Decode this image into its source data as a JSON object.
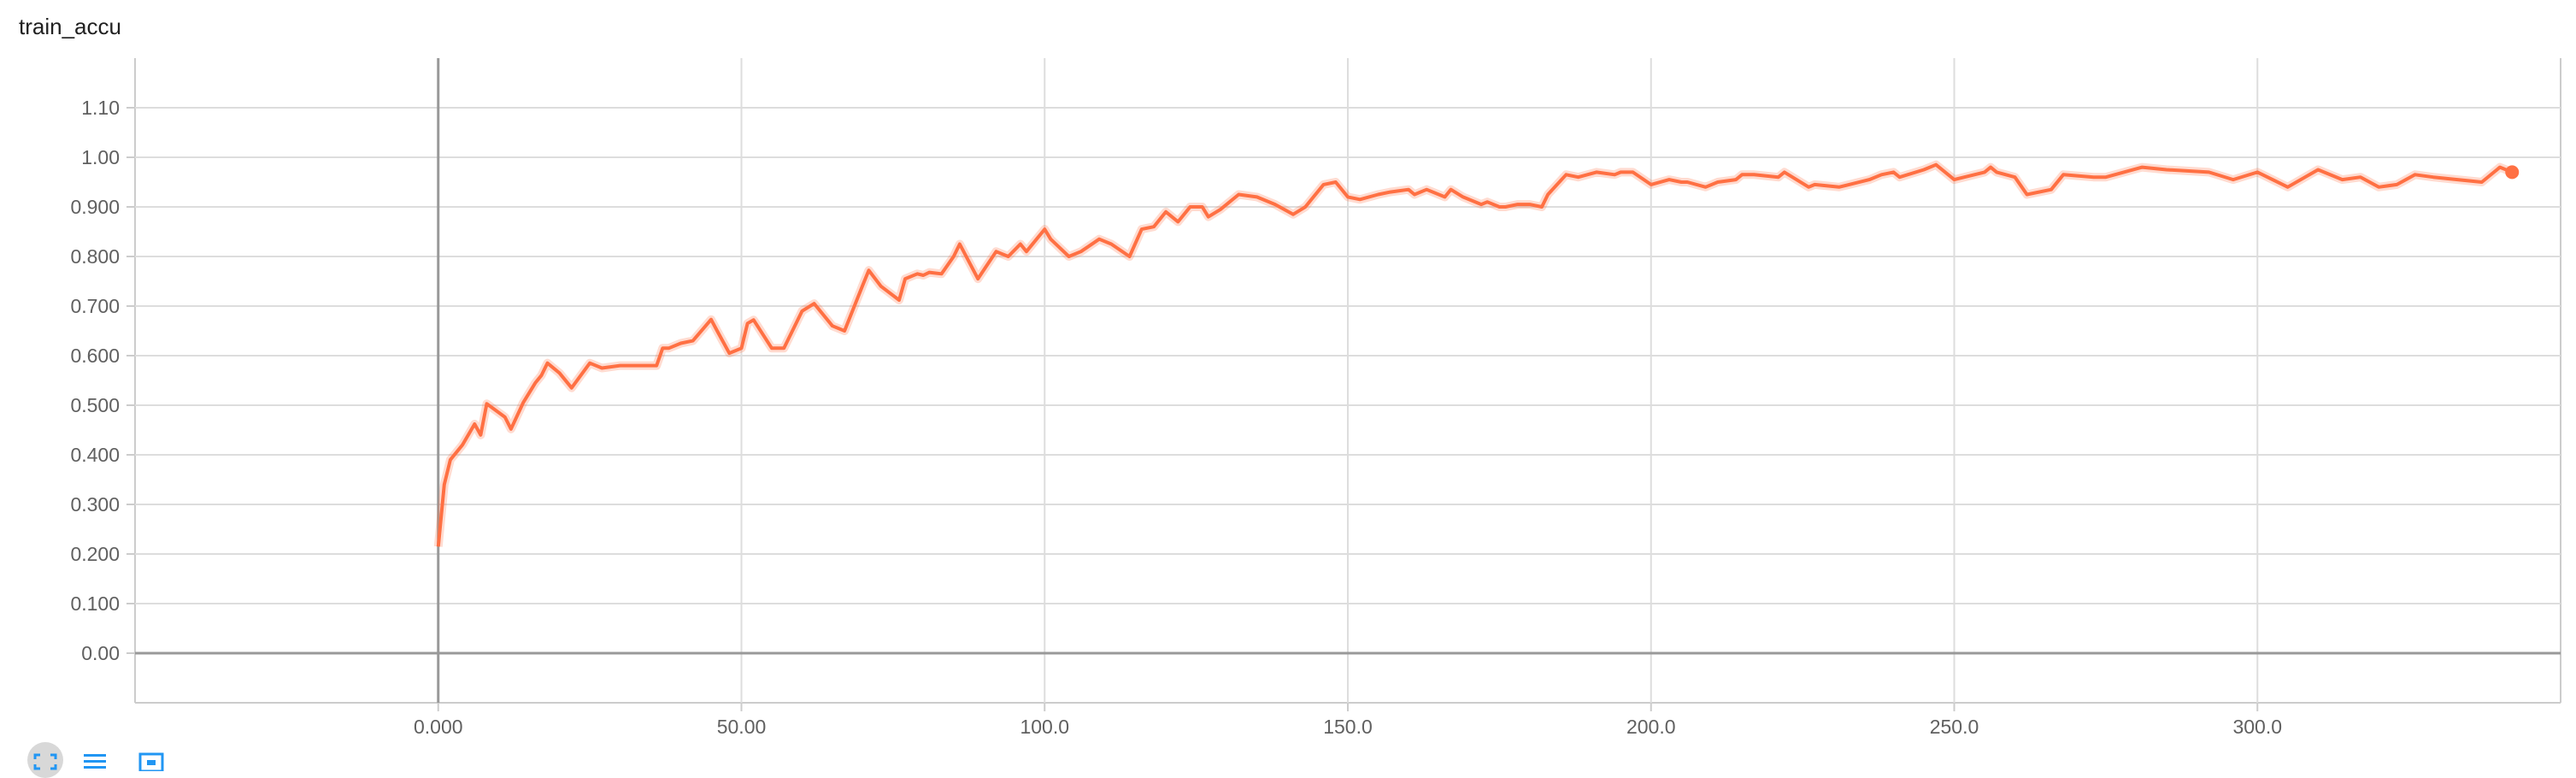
{
  "chart_data": {
    "type": "line",
    "title": "train_accu",
    "xlabel": "",
    "ylabel": "",
    "xlim": [
      -50,
      350
    ],
    "ylim": [
      -0.1,
      1.2
    ],
    "x_ticks": [
      0,
      50,
      100,
      150,
      200,
      250,
      300
    ],
    "x_tick_labels": [
      "0.000",
      "50.00",
      "100.0",
      "150.0",
      "200.0",
      "250.0",
      "300.0"
    ],
    "y_ticks": [
      0,
      0.1,
      0.2,
      0.3,
      0.4,
      0.5,
      0.6,
      0.7,
      0.8,
      0.9,
      1.0,
      1.1
    ],
    "y_tick_labels": [
      "0.00",
      "0.100",
      "0.200",
      "0.300",
      "0.400",
      "0.500",
      "0.600",
      "0.700",
      "0.800",
      "0.900",
      "1.00",
      "1.10"
    ],
    "grid": true,
    "line_color": "#ff7043",
    "series": [
      {
        "x": [
          0,
          1,
          2,
          4,
          6,
          7,
          8,
          11,
          12,
          14,
          16,
          17,
          18,
          20,
          22,
          25,
          27,
          30,
          32,
          34,
          36,
          37,
          38,
          40,
          42,
          45,
          46,
          48,
          50,
          51,
          52,
          55,
          57,
          60,
          62,
          65,
          67,
          70,
          71,
          73,
          76,
          77,
          79,
          80,
          81,
          83,
          85,
          86,
          89,
          92,
          94,
          96,
          97,
          100,
          101,
          104,
          106,
          109,
          111,
          114,
          116,
          118,
          120,
          122,
          124,
          126,
          127,
          129,
          132,
          135,
          138,
          141,
          143,
          146,
          148,
          150,
          152,
          155,
          157,
          160,
          161,
          163,
          166,
          167,
          169,
          172,
          173,
          175,
          176,
          178,
          180,
          182,
          183,
          186,
          188,
          191,
          194,
          195,
          197,
          200,
          203,
          205,
          206,
          209,
          211,
          214,
          215,
          217,
          221,
          222,
          226,
          227,
          231,
          236,
          238,
          240,
          241,
          245,
          247,
          250,
          255,
          256,
          257,
          260,
          262,
          266,
          268,
          273,
          275,
          281,
          285,
          292,
          296,
          300,
          305,
          310,
          314,
          317,
          320,
          323,
          326,
          329,
          333,
          337,
          340,
          342
        ],
        "y": [
          0.215,
          0.34,
          0.39,
          0.42,
          0.462,
          0.44,
          0.503,
          0.476,
          0.452,
          0.505,
          0.545,
          0.56,
          0.585,
          0.565,
          0.535,
          0.585,
          0.575,
          0.58,
          0.58,
          0.58,
          0.58,
          0.615,
          0.615,
          0.625,
          0.63,
          0.673,
          0.65,
          0.605,
          0.615,
          0.665,
          0.672,
          0.615,
          0.615,
          0.69,
          0.705,
          0.66,
          0.65,
          0.742,
          0.772,
          0.74,
          0.712,
          0.755,
          0.765,
          0.762,
          0.768,
          0.765,
          0.8,
          0.825,
          0.755,
          0.81,
          0.8,
          0.825,
          0.81,
          0.855,
          0.835,
          0.8,
          0.81,
          0.835,
          0.825,
          0.8,
          0.855,
          0.86,
          0.89,
          0.87,
          0.9,
          0.9,
          0.88,
          0.895,
          0.925,
          0.92,
          0.905,
          0.885,
          0.9,
          0.945,
          0.95,
          0.92,
          0.915,
          0.925,
          0.93,
          0.935,
          0.925,
          0.935,
          0.92,
          0.935,
          0.92,
          0.905,
          0.91,
          0.9,
          0.9,
          0.905,
          0.905,
          0.9,
          0.925,
          0.965,
          0.96,
          0.97,
          0.965,
          0.97,
          0.97,
          0.945,
          0.955,
          0.95,
          0.95,
          0.94,
          0.95,
          0.955,
          0.965,
          0.965,
          0.96,
          0.97,
          0.94,
          0.945,
          0.94,
          0.955,
          0.965,
          0.97,
          0.96,
          0.975,
          0.985,
          0.955,
          0.97,
          0.98,
          0.97,
          0.96,
          0.925,
          0.935,
          0.965,
          0.96,
          0.96,
          0.98,
          0.975,
          0.97,
          0.955,
          0.97,
          0.94,
          0.975,
          0.955,
          0.96,
          0.94,
          0.945,
          0.965,
          0.96,
          0.955,
          0.95,
          0.98,
          0.97
        ]
      }
    ]
  }
}
